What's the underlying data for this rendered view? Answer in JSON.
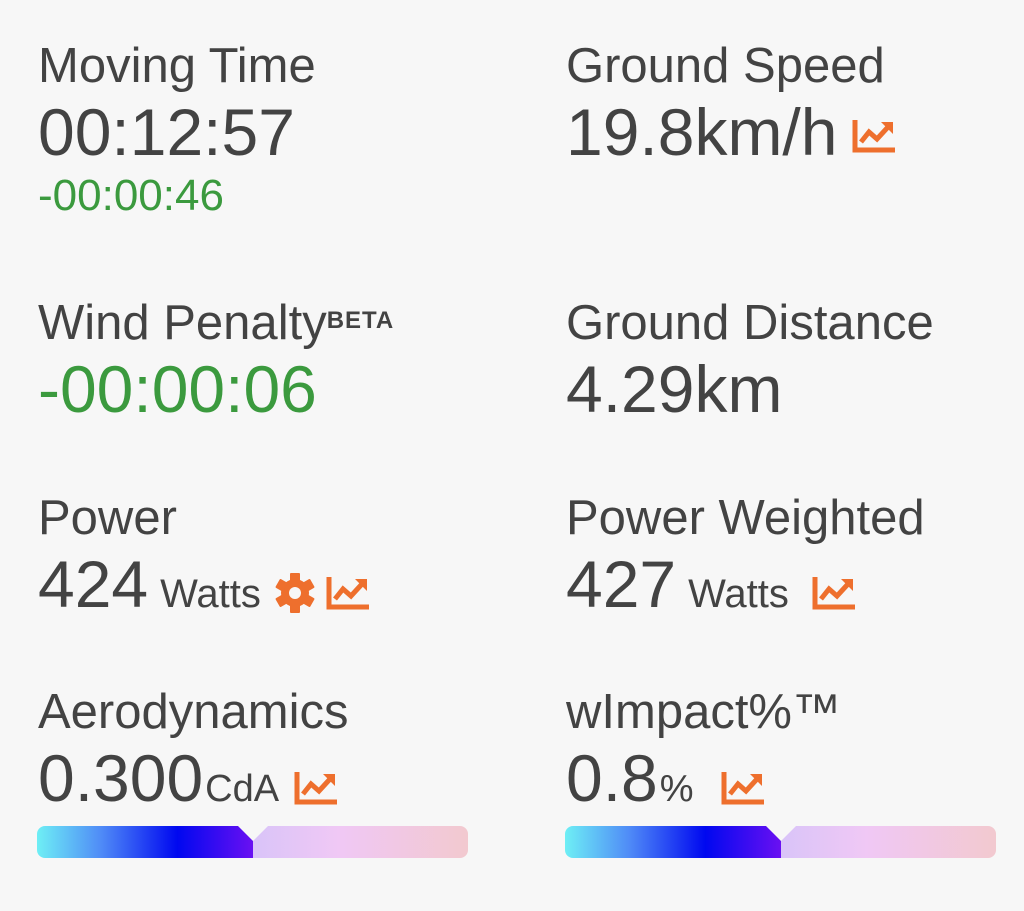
{
  "accent": "#ee6f2d",
  "metrics": {
    "moving_time": {
      "label": "Moving Time",
      "value": "00:12:57",
      "delta": "-00:00:46"
    },
    "ground_speed": {
      "label": "Ground Speed",
      "value": "19.8km/h",
      "icon": "chart-trend-icon"
    },
    "wind_penalty": {
      "label": "Wind Penalty",
      "badge": "BETA",
      "value": "-00:00:06"
    },
    "ground_distance": {
      "label": "Ground Distance",
      "value": "4.29km"
    },
    "power": {
      "label": "Power",
      "value": "424",
      "unit": "Watts",
      "icons": [
        "gear-icon",
        "chart-trend-icon"
      ]
    },
    "power_weighted": {
      "label": "Power Weighted",
      "value": "427",
      "unit": "Watts",
      "icon": "chart-trend-icon"
    },
    "aerodynamics": {
      "label": "Aerodynamics",
      "value": "0.300",
      "unit": "CdA",
      "icon": "chart-trend-icon",
      "gauge_fraction": 0.5
    },
    "wimpact": {
      "label": "wImpact%™",
      "value": "0.8",
      "unit": "%",
      "icon": "chart-trend-icon",
      "gauge_fraction": 0.5
    }
  }
}
